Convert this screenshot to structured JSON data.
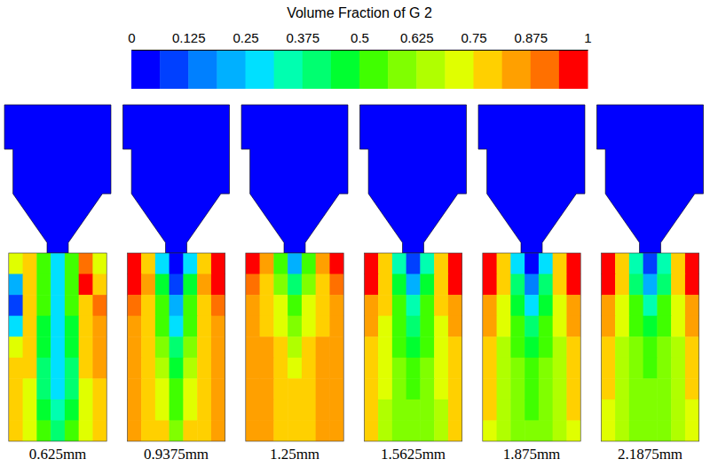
{
  "chart_data": {
    "type": "heatmap",
    "colorbar": {
      "title": "Volume Fraction of G 2",
      "range": [
        0,
        1
      ],
      "ticks": [
        0,
        0.125,
        0.25,
        0.375,
        0.5,
        0.625,
        0.75,
        0.875,
        1
      ],
      "colors": [
        "#0000ff",
        "#0040ff",
        "#0080ff",
        "#00b0ff",
        "#00e0ff",
        "#00ffb0",
        "#00ff70",
        "#00ff30",
        "#40ff00",
        "#80ff00",
        "#b0ff00",
        "#e0ff00",
        "#ffd000",
        "#ffa000",
        "#ff7000",
        "#ff0000"
      ]
    },
    "panels": [
      {
        "label": "0.625mm",
        "inlet_value": 0,
        "cells": [
          [
            0.7,
            0.8,
            0.5,
            0.3,
            0.5,
            0.9,
            0.7
          ],
          [
            0.2,
            0.8,
            0.55,
            0.3,
            0.5,
            0.95,
            0.8
          ],
          [
            0.1,
            0.75,
            0.5,
            0.3,
            0.5,
            0.8,
            0.9
          ],
          [
            0.3,
            0.8,
            0.45,
            0.3,
            0.45,
            0.8,
            0.85
          ],
          [
            0.7,
            0.8,
            0.45,
            0.3,
            0.45,
            0.75,
            0.85
          ],
          [
            0.8,
            0.75,
            0.4,
            0.3,
            0.4,
            0.75,
            0.85
          ],
          [
            0.8,
            0.7,
            0.4,
            0.3,
            0.4,
            0.7,
            0.8
          ],
          [
            0.8,
            0.7,
            0.45,
            0.35,
            0.45,
            0.7,
            0.8
          ],
          [
            0.8,
            0.7,
            0.5,
            0.4,
            0.5,
            0.7,
            0.8
          ]
        ]
      },
      {
        "label": "0.9375mm",
        "inlet_value": 0,
        "cells": [
          [
            1,
            0.8,
            0.3,
            0.05,
            0.3,
            0.8,
            1
          ],
          [
            1,
            0.85,
            0.45,
            0.1,
            0.45,
            0.85,
            1
          ],
          [
            0.9,
            0.8,
            0.5,
            0.2,
            0.5,
            0.8,
            0.9
          ],
          [
            0.85,
            0.8,
            0.55,
            0.3,
            0.55,
            0.8,
            0.85
          ],
          [
            0.85,
            0.8,
            0.6,
            0.4,
            0.6,
            0.8,
            0.85
          ],
          [
            0.85,
            0.8,
            0.65,
            0.45,
            0.65,
            0.8,
            0.85
          ],
          [
            0.85,
            0.8,
            0.7,
            0.5,
            0.7,
            0.8,
            0.85
          ],
          [
            0.85,
            0.8,
            0.7,
            0.55,
            0.7,
            0.8,
            0.85
          ],
          [
            0.85,
            0.8,
            0.75,
            0.6,
            0.75,
            0.8,
            0.85
          ]
        ]
      },
      {
        "label": "1.25mm",
        "inlet_value": 0,
        "cells": [
          [
            1,
            0.85,
            0.55,
            0.2,
            0.55,
            0.85,
            1
          ],
          [
            0.9,
            0.8,
            0.6,
            0.4,
            0.6,
            0.8,
            0.9
          ],
          [
            0.85,
            0.8,
            0.7,
            0.55,
            0.7,
            0.8,
            0.85
          ],
          [
            0.85,
            0.8,
            0.72,
            0.62,
            0.72,
            0.8,
            0.85
          ],
          [
            0.85,
            0.82,
            0.75,
            0.68,
            0.75,
            0.82,
            0.85
          ],
          [
            0.85,
            0.82,
            0.78,
            0.72,
            0.78,
            0.82,
            0.85
          ],
          [
            0.85,
            0.83,
            0.8,
            0.75,
            0.8,
            0.83,
            0.85
          ],
          [
            0.85,
            0.85,
            0.8,
            0.78,
            0.8,
            0.85,
            0.85
          ],
          [
            0.85,
            0.85,
            0.8,
            0.78,
            0.8,
            0.85,
            0.85
          ]
        ]
      },
      {
        "label": "1.5625mm",
        "inlet_value": 0,
        "cells": [
          [
            1,
            0.8,
            0.35,
            0.1,
            0.35,
            0.8,
            1
          ],
          [
            1,
            0.8,
            0.45,
            0.2,
            0.45,
            0.8,
            1
          ],
          [
            0.85,
            0.75,
            0.5,
            0.35,
            0.5,
            0.75,
            0.85
          ],
          [
            0.85,
            0.72,
            0.55,
            0.42,
            0.55,
            0.72,
            0.85
          ],
          [
            0.8,
            0.7,
            0.55,
            0.48,
            0.55,
            0.7,
            0.8
          ],
          [
            0.8,
            0.7,
            0.6,
            0.52,
            0.6,
            0.7,
            0.8
          ],
          [
            0.8,
            0.7,
            0.6,
            0.55,
            0.6,
            0.7,
            0.8
          ],
          [
            0.78,
            0.68,
            0.62,
            0.58,
            0.62,
            0.68,
            0.78
          ],
          [
            0.78,
            0.68,
            0.62,
            0.6,
            0.62,
            0.68,
            0.78
          ]
        ]
      },
      {
        "label": "1.875mm",
        "inlet_value": 0,
        "cells": [
          [
            1,
            0.75,
            0.3,
            0.05,
            0.3,
            0.75,
            1
          ],
          [
            1,
            0.75,
            0.4,
            0.15,
            0.4,
            0.75,
            1
          ],
          [
            0.85,
            0.72,
            0.48,
            0.3,
            0.48,
            0.72,
            0.85
          ],
          [
            0.82,
            0.7,
            0.52,
            0.4,
            0.52,
            0.7,
            0.82
          ],
          [
            0.8,
            0.68,
            0.55,
            0.45,
            0.55,
            0.68,
            0.8
          ],
          [
            0.78,
            0.68,
            0.58,
            0.5,
            0.58,
            0.68,
            0.78
          ],
          [
            0.75,
            0.65,
            0.58,
            0.52,
            0.58,
            0.65,
            0.75
          ],
          [
            0.75,
            0.65,
            0.6,
            0.55,
            0.6,
            0.65,
            0.75
          ],
          [
            0.72,
            0.65,
            0.6,
            0.57,
            0.6,
            0.65,
            0.72
          ]
        ]
      },
      {
        "label": "2.1875mm",
        "inlet_value": 0,
        "cells": [
          [
            1,
            0.8,
            0.35,
            0.1,
            0.35,
            0.8,
            1
          ],
          [
            1,
            0.78,
            0.42,
            0.2,
            0.42,
            0.78,
            1
          ],
          [
            0.85,
            0.72,
            0.5,
            0.35,
            0.5,
            0.72,
            0.85
          ],
          [
            0.82,
            0.7,
            0.55,
            0.45,
            0.55,
            0.7,
            0.82
          ],
          [
            0.8,
            0.68,
            0.58,
            0.5,
            0.58,
            0.68,
            0.8
          ],
          [
            0.78,
            0.68,
            0.6,
            0.55,
            0.6,
            0.68,
            0.78
          ],
          [
            0.75,
            0.66,
            0.6,
            0.57,
            0.6,
            0.66,
            0.75
          ],
          [
            0.72,
            0.65,
            0.6,
            0.58,
            0.6,
            0.65,
            0.72
          ],
          [
            0.72,
            0.65,
            0.62,
            0.6,
            0.62,
            0.65,
            0.72
          ]
        ]
      }
    ]
  }
}
